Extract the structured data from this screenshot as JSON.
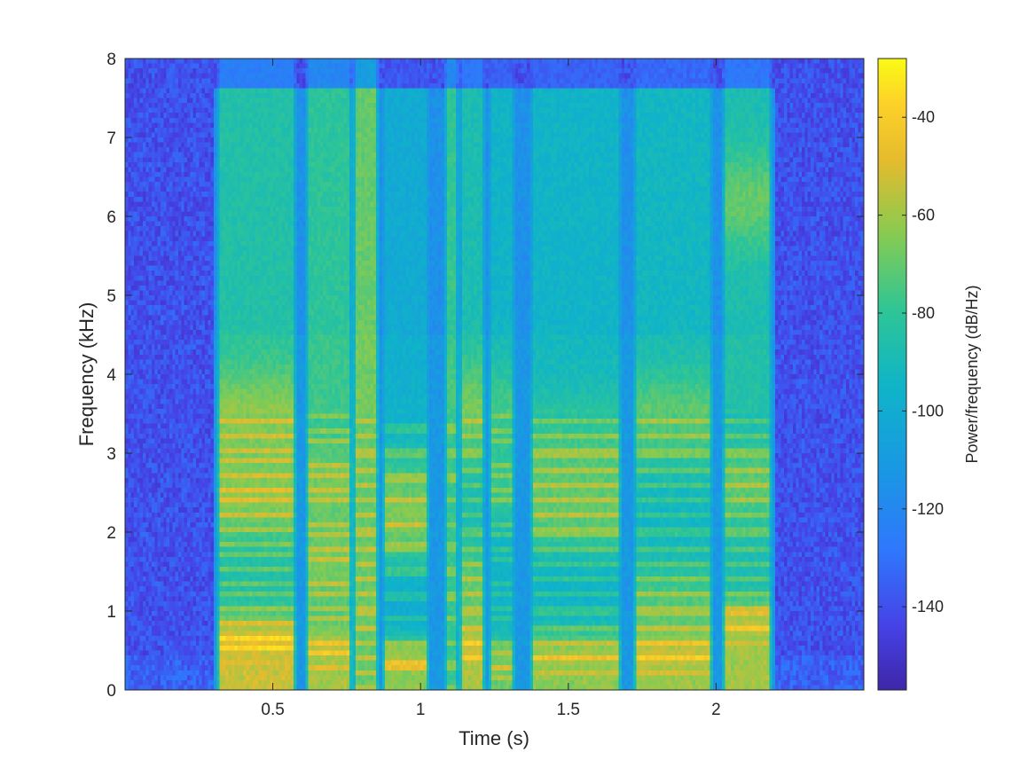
{
  "chart_data": {
    "type": "heatmap",
    "title": "",
    "xlabel": "Time (s)",
    "ylabel": "Frequency (kHz)",
    "xlim": [
      0,
      2.5
    ],
    "ylim": [
      0,
      8
    ],
    "x_ticks": [
      0.5,
      1,
      1.5,
      2
    ],
    "x_tick_labels": [
      "0.5",
      "1",
      "1.5",
      "2"
    ],
    "y_ticks": [
      0,
      1,
      2,
      3,
      4,
      5,
      6,
      7,
      8
    ],
    "y_tick_labels": [
      "0",
      "1",
      "2",
      "3",
      "4",
      "5",
      "6",
      "7",
      "8"
    ],
    "colormap": "parula",
    "colorbar": {
      "label": "Power/frequency (dB/Hz)",
      "range": [
        -157,
        -28
      ],
      "ticks": [
        -140,
        -120,
        -100,
        -80,
        -60,
        -40
      ],
      "tick_labels": [
        "-140",
        "-120",
        "-100",
        "-80",
        "-60",
        "-40"
      ]
    },
    "noise_floor_db": -140,
    "speech_extent_s": [
      0.3,
      2.2
    ],
    "segments": [
      {
        "start": 0.31,
        "end": 0.58,
        "peak_db": -45,
        "f0_khz": 0.17,
        "formants_khz": [
          0.6,
          2.4,
          3.4
        ],
        "hf_db": -82
      },
      {
        "start": 0.61,
        "end": 0.77,
        "peak_db": -52,
        "f0_khz": 0.15,
        "formants_khz": [
          0.5,
          1.5,
          2.6
        ],
        "hf_db": -78
      },
      {
        "start": 0.77,
        "end": 0.86,
        "peak_db": -68,
        "f0_khz": 0.2,
        "formants_khz": [
          4.0,
          6.3,
          7.2
        ],
        "hf_db": -66
      },
      {
        "start": 0.87,
        "end": 1.03,
        "peak_db": -55,
        "f0_khz": 0.3,
        "formants_khz": [
          0.35,
          2.0,
          2.6
        ],
        "hf_db": -98
      },
      {
        "start": 1.08,
        "end": 1.13,
        "peak_db": -78,
        "f0_khz": 0.3,
        "formants_khz": [
          4.5,
          6.0,
          7.5
        ],
        "hf_db": -75
      },
      {
        "start": 1.13,
        "end": 1.22,
        "peak_db": -50,
        "f0_khz": 0.2,
        "formants_khz": [
          0.5,
          1.3,
          3.5
        ],
        "hf_db": -85
      },
      {
        "start": 1.23,
        "end": 1.32,
        "peak_db": -62,
        "f0_khz": 0.15,
        "formants_khz": [
          0.3,
          2.5,
          3.5
        ],
        "hf_db": -92
      },
      {
        "start": 1.37,
        "end": 1.68,
        "peak_db": -55,
        "f0_khz": 0.2,
        "formants_khz": [
          0.4,
          2.2,
          3.0
        ],
        "hf_db": -92
      },
      {
        "start": 1.72,
        "end": 1.99,
        "peak_db": -53,
        "f0_khz": 0.2,
        "formants_khz": [
          0.4,
          1.1,
          3.4
        ],
        "hf_db": -90
      },
      {
        "start": 2.02,
        "end": 2.19,
        "peak_db": -52,
        "f0_khz": 0.2,
        "formants_khz": [
          0.8,
          2.6,
          6.2
        ],
        "hf_db": -85
      }
    ]
  }
}
